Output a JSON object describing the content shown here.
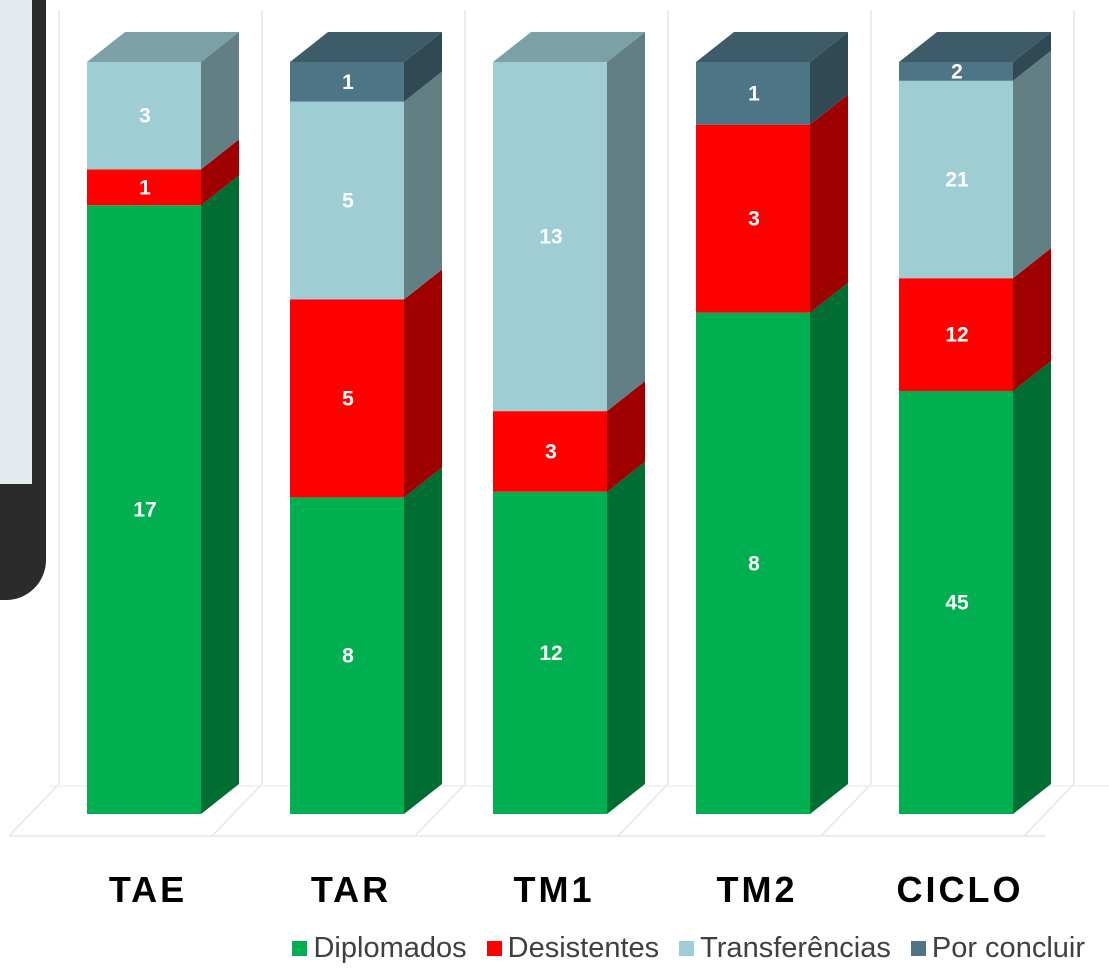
{
  "chart_data": {
    "type": "bar",
    "stacked": true,
    "three_d": true,
    "categories": [
      "TAE",
      "TAR",
      "TM1",
      "TM2",
      "CICLO"
    ],
    "series": [
      {
        "name": "Diplomados",
        "color": "#00b050",
        "values": [
          17,
          8,
          12,
          8,
          45
        ]
      },
      {
        "name": "Desistentes",
        "color": "#ff0000",
        "values": [
          1,
          5,
          3,
          3,
          12
        ]
      },
      {
        "name": "Transferências",
        "color": "#9ecdd3",
        "values": [
          3,
          5,
          13,
          0,
          21
        ]
      },
      {
        "name": "Por concluir",
        "color": "#4e7585",
        "values": [
          0,
          1,
          0,
          1,
          2
        ]
      }
    ],
    "ylim": [
      0,
      100
    ],
    "value_axis": "percent of category total",
    "grid": true,
    "legend_position": "bottom-right"
  }
}
